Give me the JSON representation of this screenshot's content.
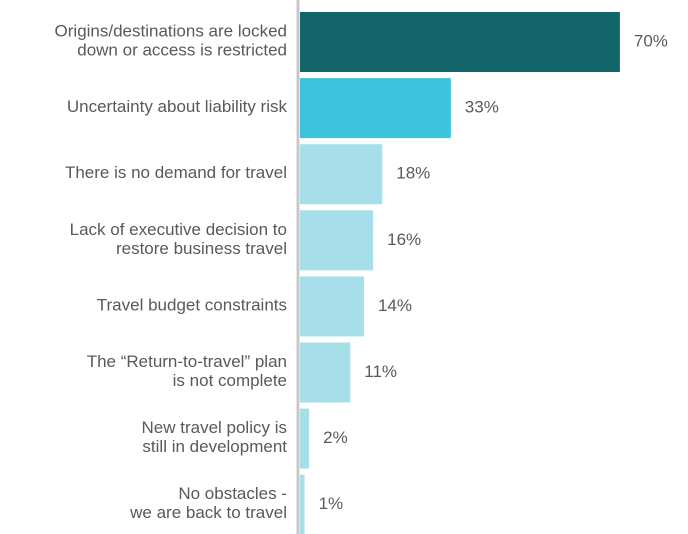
{
  "chart_data": {
    "type": "bar",
    "orientation": "horizontal",
    "categories": [
      "Origins/destinations are locked\ndown or access is restricted",
      "Uncertainty about liability risk",
      "There is no demand for travel",
      "Lack of executive decision to\nrestore business travel",
      "Travel budget constraints",
      "The “Return-to-travel” plan\nis not complete",
      "New travel policy is\nstill in development",
      "No obstacles -\nwe are back to travel"
    ],
    "values": [
      70,
      33,
      18,
      16,
      14,
      11,
      2,
      1
    ],
    "value_labels": [
      "70%",
      "33%",
      "18%",
      "16%",
      "14%",
      "11%",
      "2%",
      "1%"
    ],
    "colors": [
      "#12666a",
      "#3bc4dc",
      "#a6dfea",
      "#a6dfea",
      "#a6dfea",
      "#a6dfea",
      "#a6dfea",
      "#a6dfea"
    ]
  }
}
